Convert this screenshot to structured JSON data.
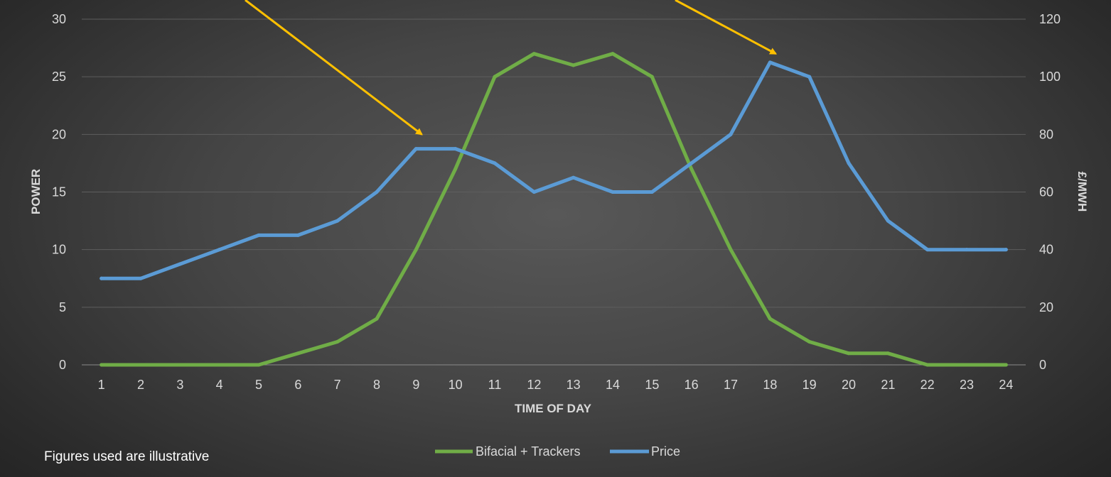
{
  "chart_data": {
    "type": "line",
    "xlabel": "TIME OF DAY",
    "ylabel_left": "POWER",
    "ylabel_right": "£/MWH",
    "categories": [
      1,
      2,
      3,
      4,
      5,
      6,
      7,
      8,
      9,
      10,
      11,
      12,
      13,
      14,
      15,
      16,
      17,
      18,
      19,
      20,
      21,
      22,
      23,
      24
    ],
    "ylim_left": [
      0,
      30
    ],
    "yticks_left": [
      0,
      5,
      10,
      15,
      20,
      25,
      30
    ],
    "ylim_right": [
      0,
      120
    ],
    "yticks_right": [
      0,
      20,
      40,
      60,
      80,
      100,
      120
    ],
    "grid": true,
    "legend_position": "bottom",
    "series": [
      {
        "name": "Bifacial + Trackers",
        "axis": "left",
        "color": "#70ad47",
        "values": [
          0,
          0,
          0,
          0,
          0,
          1,
          2,
          4,
          10,
          17,
          25,
          27,
          26,
          27,
          25,
          17,
          10,
          4,
          2,
          1,
          1,
          0,
          0,
          0
        ]
      },
      {
        "name": "Price",
        "axis": "right",
        "color": "#5b9bd5",
        "values": [
          30,
          30,
          35,
          40,
          45,
          45,
          50,
          60,
          75,
          75,
          70,
          60,
          65,
          60,
          60,
          70,
          80,
          105,
          100,
          70,
          50,
          40,
          40,
          40
        ]
      }
    ],
    "annotations": [
      {
        "kind": "arrow",
        "color": "#ffc000",
        "points_to_x": 9,
        "points_to_y_right": 80
      },
      {
        "kind": "arrow",
        "color": "#ffc000",
        "points_to_x": 18,
        "points_to_y_right": 108
      }
    ]
  },
  "footnote": "Figures used are illustrative"
}
